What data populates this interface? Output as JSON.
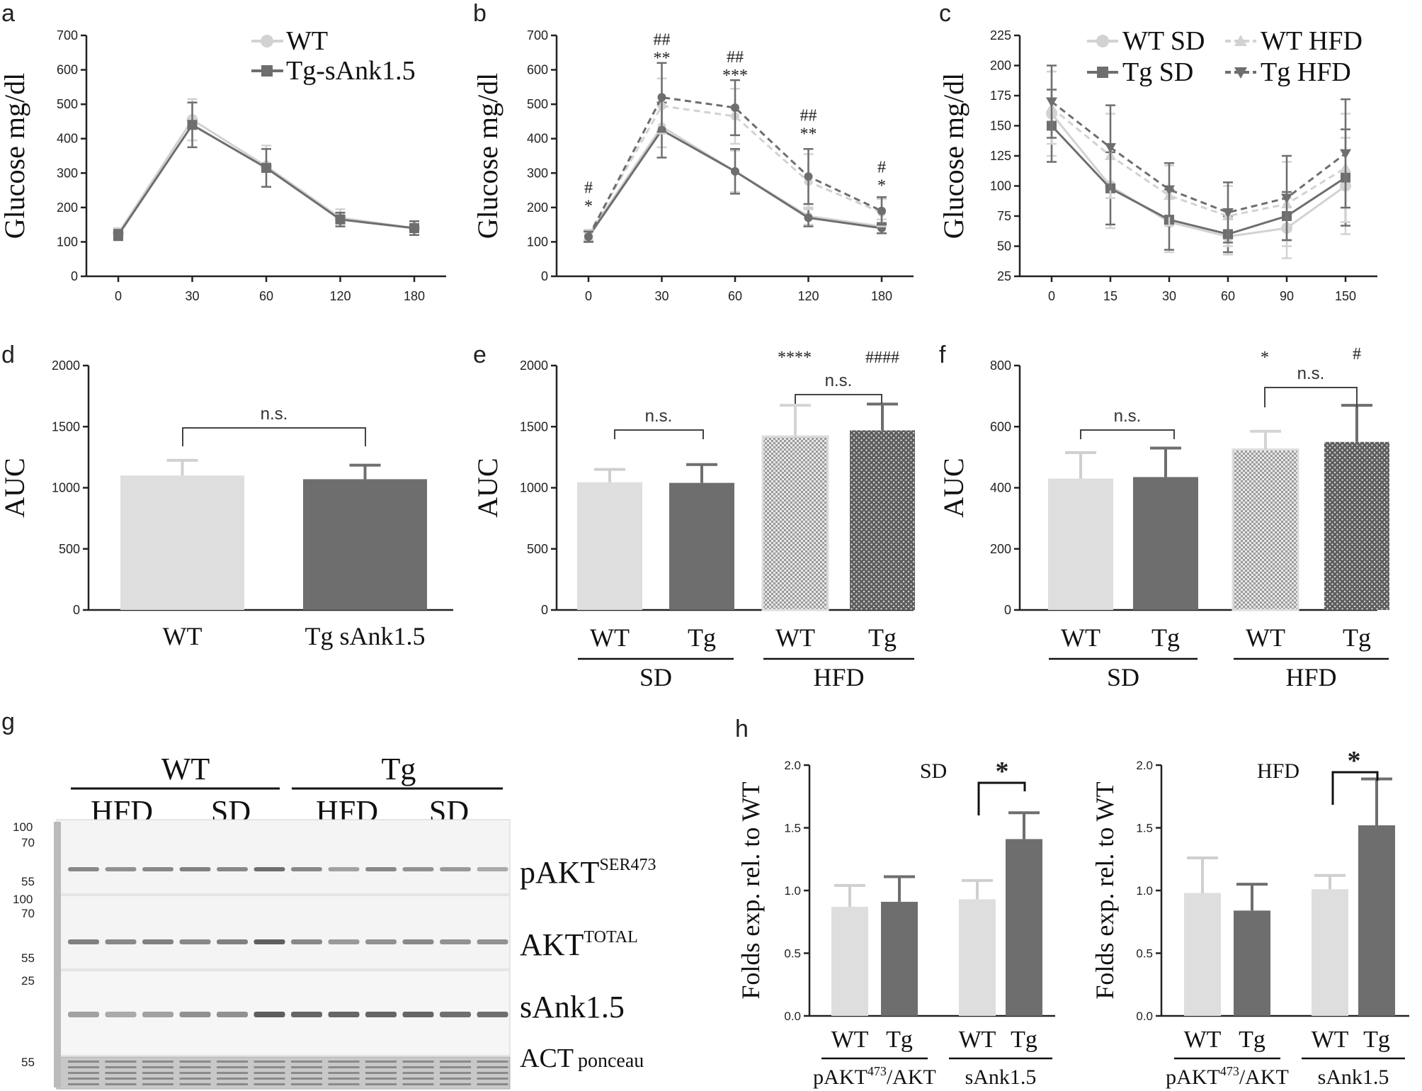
{
  "colors": {
    "light": "#dcdcdc",
    "dark": "#6e6e6e",
    "axis": "#222222"
  },
  "chart_data": [
    {
      "panel": "a",
      "type": "line",
      "ylabel": "Glucose mg/dl",
      "x": [
        "0",
        "30",
        "60",
        "120",
        "180"
      ],
      "ylim": [
        0,
        700
      ],
      "yticks": [
        "0",
        "100",
        "200",
        "300",
        "400",
        "500",
        "600",
        "700"
      ],
      "series": [
        {
          "name": "WT",
          "values": [
            125,
            455,
            320,
            170,
            140
          ],
          "err": [
            15,
            60,
            60,
            25,
            20
          ],
          "style": "light-solid",
          "marker": "circle"
        },
        {
          "name": "Tg-sAnk1.5",
          "values": [
            120,
            440,
            315,
            165,
            140
          ],
          "err": [
            15,
            65,
            55,
            20,
            20
          ],
          "style": "dark-solid",
          "marker": "square"
        }
      ],
      "legend": [
        "WT",
        "Tg-sAnk1.5"
      ]
    },
    {
      "panel": "b",
      "type": "line",
      "ylabel": "Glucose mg/dl",
      "x": [
        "0",
        "30",
        "60",
        "120",
        "180"
      ],
      "ylim": [
        0,
        700
      ],
      "yticks": [
        "0",
        "100",
        "200",
        "300",
        "400",
        "500",
        "600",
        "700"
      ],
      "series": [
        {
          "name": "WT SD",
          "values": [
            120,
            435,
            305,
            175,
            145
          ],
          "err": [
            15,
            60,
            60,
            25,
            20
          ],
          "style": "light-solid"
        },
        {
          "name": "Tg SD",
          "values": [
            115,
            425,
            305,
            170,
            140
          ],
          "err": [
            15,
            80,
            65,
            25,
            15
          ],
          "style": "dark-solid"
        },
        {
          "name": "WT HFD",
          "values": [
            120,
            495,
            465,
            275,
            185
          ],
          "err": [
            15,
            80,
            80,
            80,
            40
          ],
          "style": "light-dashed"
        },
        {
          "name": "Tg HFD",
          "values": [
            115,
            520,
            490,
            290,
            190
          ],
          "err": [
            15,
            100,
            80,
            80,
            40
          ],
          "style": "dark-dashed"
        }
      ],
      "annotations": [
        {
          "x": "0",
          "lines": [
            "#",
            "*"
          ]
        },
        {
          "x": "30",
          "lines": [
            "##",
            "**"
          ]
        },
        {
          "x": "60",
          "lines": [
            "##",
            "***"
          ]
        },
        {
          "x": "120",
          "lines": [
            "##",
            "**"
          ]
        },
        {
          "x": "180",
          "lines": [
            "#",
            "*"
          ]
        }
      ]
    },
    {
      "panel": "c",
      "type": "line",
      "ylabel": "Glucose mg/dl",
      "x": [
        "0",
        "15",
        "30",
        "60",
        "90",
        "150"
      ],
      "ylim": [
        25,
        225
      ],
      "yticks": [
        "25",
        "50",
        "75",
        "100",
        "125",
        "150",
        "175",
        "200",
        "225"
      ],
      "series": [
        {
          "name": "WT SD",
          "values": [
            160,
            100,
            70,
            58,
            65,
            100
          ],
          "err": [
            35,
            35,
            25,
            15,
            25,
            40
          ],
          "style": "light-solid",
          "marker": "circle"
        },
        {
          "name": "Tg SD",
          "values": [
            150,
            98,
            72,
            60,
            75,
            107
          ],
          "err": [
            30,
            30,
            25,
            15,
            20,
            40
          ],
          "style": "dark-solid",
          "marker": "square"
        },
        {
          "name": "WT HFD",
          "values": [
            165,
            125,
            92,
            75,
            85,
            115
          ],
          "err": [
            30,
            35,
            25,
            25,
            35,
            45
          ],
          "style": "light-dashed",
          "marker": "triangle"
        },
        {
          "name": "Tg HFD",
          "values": [
            170,
            132,
            97,
            78,
            90,
            127
          ],
          "err": [
            30,
            35,
            22,
            25,
            35,
            45
          ],
          "style": "dark-dashed",
          "marker": "triangle-down"
        }
      ],
      "legend": [
        "WT SD",
        "WT HFD",
        "Tg SD",
        "Tg HFD"
      ]
    },
    {
      "panel": "d",
      "type": "bar",
      "ylabel": "AUC",
      "categories": [
        "WT",
        "Tg sAnk1.5"
      ],
      "values": [
        1100,
        1070
      ],
      "err": [
        125,
        115
      ],
      "ylim": [
        0,
        2000
      ],
      "yticks": [
        "0",
        "500",
        "1000",
        "1500",
        "2000"
      ],
      "significance": "n.s."
    },
    {
      "panel": "e",
      "type": "bar",
      "ylabel": "AUC",
      "categories": [
        "WT",
        "Tg",
        "WT",
        "Tg"
      ],
      "groups": [
        "SD",
        "HFD"
      ],
      "values": [
        1045,
        1040,
        1420,
        1470
      ],
      "err": [
        105,
        150,
        255,
        215
      ],
      "ylim": [
        0,
        2000
      ],
      "yticks": [
        "0",
        "500",
        "1000",
        "1500",
        "2000"
      ],
      "significance": [
        "n.s.",
        "n.s.",
        "****",
        "####"
      ]
    },
    {
      "panel": "f",
      "type": "bar",
      "ylabel": "AUC",
      "categories": [
        "WT",
        "Tg",
        "WT",
        "Tg"
      ],
      "groups": [
        "SD",
        "HFD"
      ],
      "values": [
        430,
        435,
        525,
        550
      ],
      "err": [
        85,
        95,
        60,
        120
      ],
      "ylim": [
        0,
        800
      ],
      "yticks": [
        "0",
        "200",
        "400",
        "600",
        "800"
      ],
      "significance": [
        "n.s.",
        "n.s.",
        "*",
        "#"
      ]
    },
    {
      "panel": "h-SD",
      "type": "bar",
      "ylabel": "Folds exp. rel. to WT",
      "title": "SD",
      "categories": [
        "WT",
        "Tg",
        "WT",
        "Tg"
      ],
      "groups": [
        "pAKT473/AKT",
        "sAnk1.5"
      ],
      "values": [
        0.87,
        0.91,
        0.93,
        1.41
      ],
      "err": [
        0.17,
        0.2,
        0.15,
        0.21
      ],
      "ylim": [
        0,
        2.0
      ],
      "yticks": [
        "0.0",
        "0.5",
        "1.0",
        "1.5",
        "2.0"
      ],
      "significance": "*"
    },
    {
      "panel": "h-HFD",
      "type": "bar",
      "ylabel": "Folds exp. rel. to WT",
      "title": "HFD",
      "categories": [
        "WT",
        "Tg",
        "WT",
        "Tg"
      ],
      "groups": [
        "pAKT473/AKT",
        "sAnk1.5"
      ],
      "values": [
        0.98,
        0.84,
        1.01,
        1.52
      ],
      "err": [
        0.28,
        0.21,
        0.11,
        0.37
      ],
      "ylim": [
        0,
        2.0
      ],
      "yticks": [
        "0.0",
        "0.5",
        "1.0",
        "1.5",
        "2.0"
      ],
      "significance": "*"
    }
  ],
  "panel_letters": [
    "a",
    "b",
    "c",
    "d",
    "e",
    "f",
    "g",
    "h"
  ],
  "blot": {
    "genotypes": [
      "WT",
      "Tg"
    ],
    "diets": [
      "HFD",
      "SD",
      "HFD",
      "SD"
    ],
    "markers": [
      "100",
      "70",
      "55",
      "100",
      "70",
      "55",
      "25",
      "55"
    ],
    "rows": [
      {
        "label": "pAKT",
        "sup": "SER473"
      },
      {
        "label": "AKT",
        "sup": "TOTAL"
      },
      {
        "label": "sAnk1.5",
        "sup": ""
      },
      {
        "label": "ACT",
        "sub": "ponceau"
      }
    ]
  }
}
